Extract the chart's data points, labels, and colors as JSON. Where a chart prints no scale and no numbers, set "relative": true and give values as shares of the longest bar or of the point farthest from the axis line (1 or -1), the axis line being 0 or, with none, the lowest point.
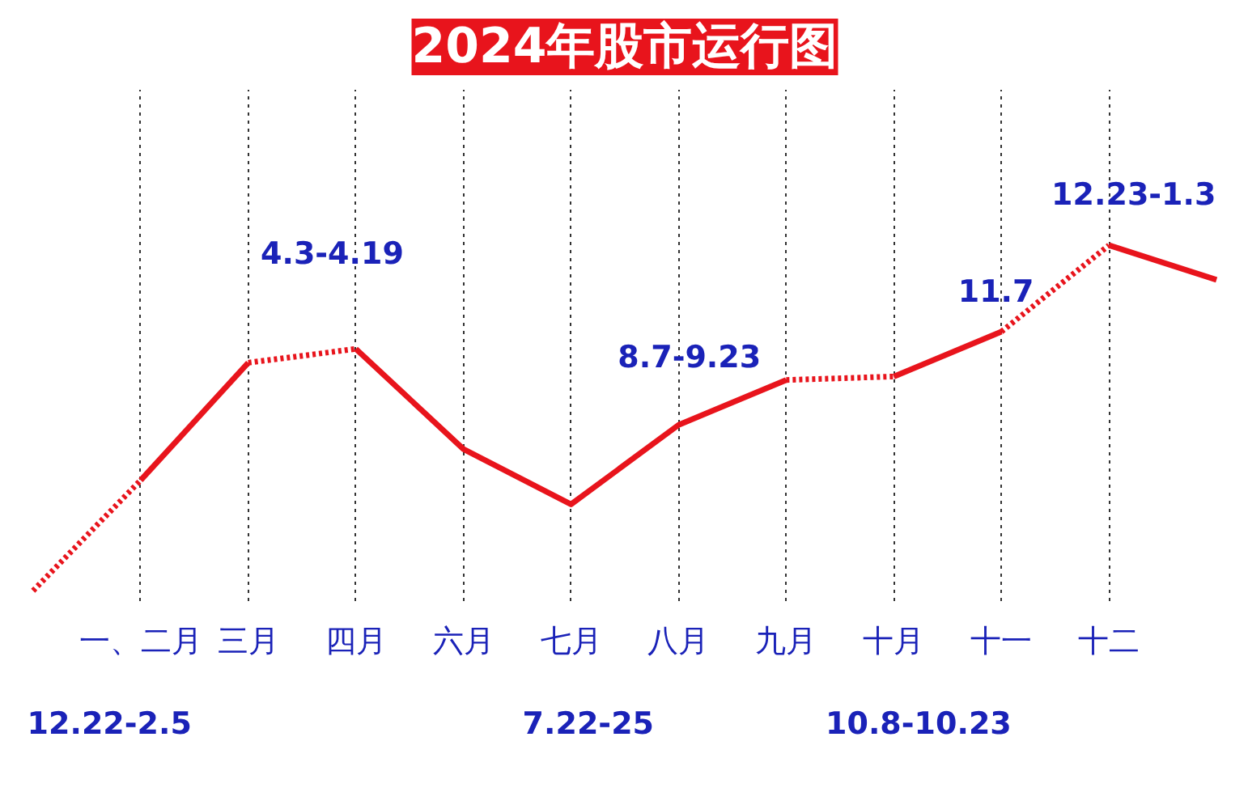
{
  "chart_data": {
    "type": "line",
    "title": "2024年股市运行图",
    "relative": true,
    "categories": [
      null,
      "一、二月",
      "三月",
      "四月",
      "六月",
      "七月",
      "八月",
      "九月",
      "十月",
      "十一",
      "十二",
      null
    ],
    "series": [
      {
        "color": "#e8141c",
        "line_style": "dotted",
        "values": [
          0,
          0.32,
          null,
          null,
          null,
          null,
          null,
          null,
          null,
          null,
          null,
          null
        ]
      },
      {
        "color": "#e8141c",
        "line_style": "solid",
        "values": [
          null,
          0.32,
          0.66,
          null,
          null,
          null,
          null,
          null,
          null,
          null,
          null,
          null
        ]
      },
      {
        "color": "#e8141c",
        "line_style": "dotted",
        "values": [
          null,
          null,
          0.66,
          0.7,
          null,
          null,
          null,
          null,
          null,
          null,
          null,
          null
        ]
      },
      {
        "color": "#e8141c",
        "line_style": "solid",
        "values": [
          null,
          null,
          null,
          0.7,
          0.41,
          0.25,
          0.48,
          0.61,
          null,
          null,
          null,
          null
        ]
      },
      {
        "color": "#e8141c",
        "line_style": "dotted",
        "values": [
          null,
          null,
          null,
          null,
          null,
          null,
          null,
          0.61,
          0.62,
          null,
          null,
          null
        ]
      },
      {
        "color": "#e8141c",
        "line_style": "solid",
        "values": [
          null,
          null,
          null,
          null,
          null,
          null,
          null,
          null,
          0.62,
          0.75,
          null,
          null
        ]
      },
      {
        "color": "#e8141c",
        "line_style": "dotted",
        "values": [
          null,
          null,
          null,
          null,
          null,
          null,
          null,
          null,
          null,
          0.75,
          1,
          null
        ]
      },
      {
        "color": "#e8141c",
        "line_style": "solid",
        "values": [
          null,
          null,
          null,
          null,
          null,
          null,
          null,
          null,
          null,
          null,
          1,
          0.9
        ]
      }
    ],
    "annotations": [
      "4.3-4.19",
      "8.7-9.23",
      "11.7",
      "12.23-1.3",
      "12.22-2.5",
      "7.22-25",
      "10.8-10.23"
    ],
    "grid": "x"
  }
}
